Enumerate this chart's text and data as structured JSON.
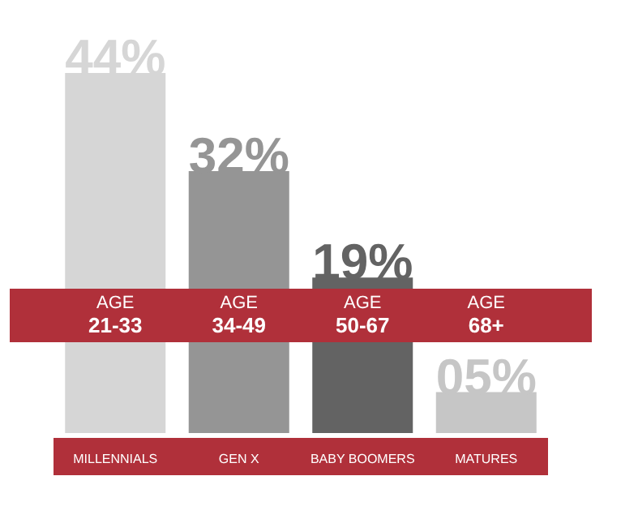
{
  "chart_data": {
    "type": "bar",
    "categories": [
      "MILLENNIALS",
      "GEN X",
      "BABY BOOMERS",
      "MATURES"
    ],
    "values": [
      44,
      32,
      19,
      5
    ],
    "colors": [
      "#d6d6d6",
      "#959595",
      "#636363",
      "#c6c6c6"
    ],
    "value_labels": [
      "44%",
      "32%",
      "19%",
      "05%"
    ],
    "annotations": [
      "AGE\n21-33",
      "AGE\n34-49",
      "AGE\n50-67",
      "AGE\n68+"
    ]
  }
}
